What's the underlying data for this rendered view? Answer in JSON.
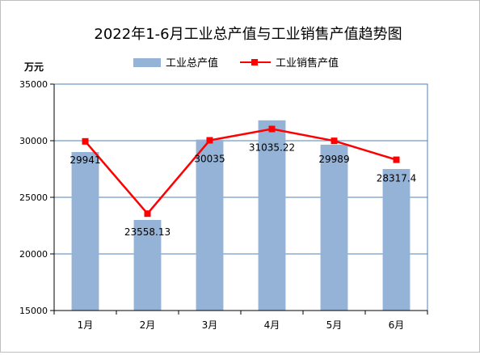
{
  "chart_data": {
    "type": "bar+line",
    "title": "2022年1-6月工业总产值与工业销售产值趋势图",
    "ylabel": "万元",
    "ylim": [
      15000,
      35000
    ],
    "yticks": [
      15000,
      20000,
      25000,
      30000,
      35000
    ],
    "categories": [
      "1月",
      "2月",
      "3月",
      "4月",
      "5月",
      "6月"
    ],
    "series": [
      {
        "name": "工业总产值",
        "type": "bar",
        "color": "#95b3d7",
        "values": [
          29000,
          23000,
          30100,
          31800,
          29650,
          27500
        ]
      },
      {
        "name": "工业销售产值",
        "type": "line",
        "color": "#ff0000",
        "values": [
          29941,
          23558.13,
          30035,
          31035.22,
          29989,
          28317.4
        ],
        "labels": [
          "29941",
          "23558.13",
          "30035",
          "31035.22",
          "29989",
          "28317.4"
        ]
      }
    ],
    "legend_position": "top",
    "grid": "horizontal",
    "plot_border_color": "#4f81bd"
  }
}
